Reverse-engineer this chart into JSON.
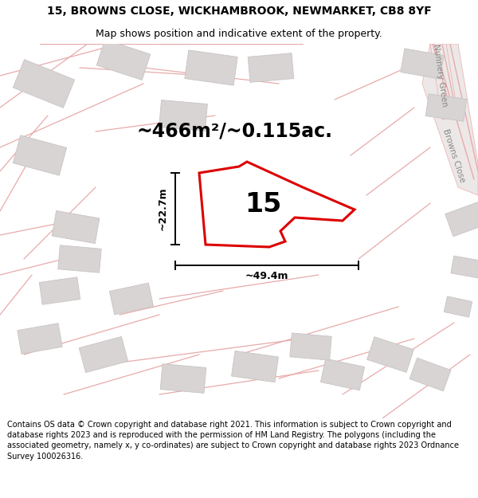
{
  "title": "15, BROWNS CLOSE, WICKHAMBROOK, NEWMARKET, CB8 8YF",
  "subtitle": "Map shows position and indicative extent of the property.",
  "footer": "Contains OS data © Crown copyright and database right 2021. This information is subject to Crown copyright and database rights 2023 and is reproduced with the permission of HM Land Registry. The polygons (including the associated geometry, namely x, y co-ordinates) are subject to Crown copyright and database rights 2023 Ordnance Survey 100026316.",
  "area_text": "~466m²/~0.115ac.",
  "width_label": "~49.4m",
  "height_label": "~22.7m",
  "number_label": "15",
  "bg_color": "#f9f7f7",
  "plot_color": "#dd0000",
  "plot_fill": "white",
  "road_line_color": "#e8aaaa",
  "building_color": "#d8d4d4",
  "building_edge": "#c8c4c4",
  "road_area_color": "#ede8e8",
  "label_color": "#888888",
  "title_fs": 10,
  "subtitle_fs": 9,
  "footer_fs": 7,
  "area_fs": 17,
  "dim_fs": 9,
  "number_fs": 24
}
